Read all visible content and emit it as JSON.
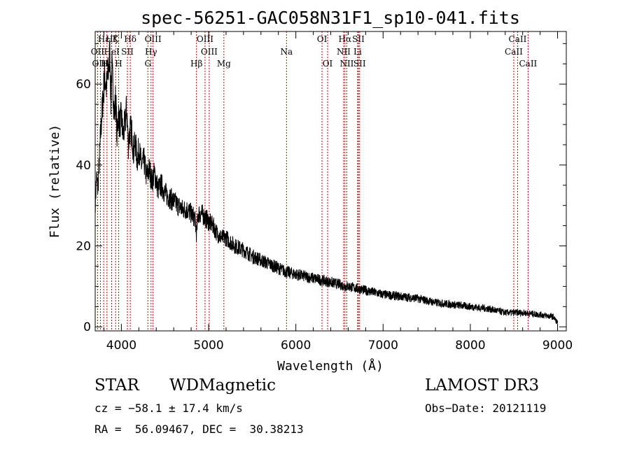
{
  "chart_data": {
    "type": "line",
    "title": "spec-56251-GAC058N31F1_sp10-041.fits",
    "xlabel": "Wavelength (Å)",
    "ylabel": "Flux (relative)",
    "xlim": [
      3700,
      9100
    ],
    "ylim": [
      -1,
      73
    ],
    "xticks": [
      4000,
      5000,
      6000,
      7000,
      8000,
      9000
    ],
    "yticks": [
      0,
      20,
      40,
      60
    ],
    "grid": false,
    "series": [
      {
        "name": "spectrum",
        "x": [
          3700,
          3715,
          3730,
          3745,
          3760,
          3775,
          3790,
          3810,
          3830,
          3850,
          3870,
          3880,
          3890,
          3905,
          3920,
          3935,
          3950,
          3965,
          3980,
          4000,
          4020,
          4040,
          4060,
          4080,
          4100,
          4120,
          4140,
          4160,
          4180,
          4200,
          4230,
          4260,
          4290,
          4320,
          4350,
          4380,
          4420,
          4460,
          4500,
          4550,
          4600,
          4650,
          4700,
          4750,
          4800,
          4840,
          4861,
          4880,
          4920,
          4960,
          5000,
          5050,
          5100,
          5150,
          5200,
          5300,
          5400,
          5500,
          5600,
          5700,
          5800,
          5900,
          6000,
          6100,
          6200,
          6300,
          6400,
          6500,
          6563,
          6600,
          6700,
          6800,
          6900,
          7000,
          7200,
          7400,
          7600,
          7800,
          8000,
          8200,
          8400,
          8600,
          8800,
          8950,
          9000
        ],
        "y": [
          30,
          37,
          34,
          40,
          47,
          52,
          57,
          62,
          59,
          63,
          68,
          55,
          64,
          59,
          52,
          57,
          47,
          53,
          50,
          52,
          47,
          50,
          54,
          45,
          49,
          48,
          43,
          46,
          41,
          44,
          40,
          41,
          37,
          39,
          36,
          38,
          34,
          35,
          33,
          32,
          31,
          30,
          29,
          29,
          28,
          27,
          23,
          28,
          28,
          27,
          26,
          25,
          23,
          22,
          22,
          20,
          19,
          17.5,
          16.5,
          15.5,
          14.5,
          13.5,
          13,
          12.5,
          12,
          11.5,
          11,
          10.5,
          10,
          10,
          9.5,
          9,
          8.5,
          8,
          7.5,
          7,
          6,
          5.5,
          5,
          4.5,
          3.5,
          3.5,
          3,
          2.5,
          1
        ]
      }
    ],
    "lines": [
      {
        "label": "Hε",
        "x": 3797,
        "row": 0
      },
      {
        "label": "OII",
        "x": 3727,
        "row": 1
      },
      {
        "label": "OIII",
        "x": 3760,
        "row": 2
      },
      {
        "label": "K",
        "x": 3934,
        "row": 0
      },
      {
        "label": "H",
        "x": 3969,
        "row": 2
      },
      {
        "label": "Hζ",
        "x": 3889,
        "row": 0
      },
      {
        "label": "HeI",
        "x": 3889,
        "row": 1
      },
      {
        "label": "Hη",
        "x": 3835,
        "row": 2
      },
      {
        "label": "SII",
        "x": 4069,
        "row": 1
      },
      {
        "label": "Hδ",
        "x": 4102,
        "row": 0
      },
      {
        "label": "OIII",
        "x": 4363,
        "row": 0
      },
      {
        "label": "Hγ",
        "x": 4340,
        "row": 1
      },
      {
        "label": "G",
        "x": 4304,
        "row": 2
      },
      {
        "label": "OIII",
        "x": 4959,
        "row": 0
      },
      {
        "label": "OIII",
        "x": 5007,
        "row": 1
      },
      {
        "label": "Hβ",
        "x": 4861,
        "row": 2
      },
      {
        "label": "Mg",
        "x": 5175,
        "row": 2
      },
      {
        "label": "Na",
        "x": 5893,
        "row": 1
      },
      {
        "label": "OI",
        "x": 6300,
        "row": 0
      },
      {
        "label": "OI",
        "x": 6364,
        "row": 2
      },
      {
        "label": "Hα",
        "x": 6563,
        "row": 0
      },
      {
        "label": "NII",
        "x": 6548,
        "row": 1
      },
      {
        "label": "NII",
        "x": 6584,
        "row": 2
      },
      {
        "label": "SII",
        "x": 6717,
        "row": 0
      },
      {
        "label": "Li",
        "x": 6708,
        "row": 1
      },
      {
        "label": "SII",
        "x": 6731,
        "row": 2
      },
      {
        "label": "CaII",
        "x": 8542,
        "row": 0
      },
      {
        "label": "CaII",
        "x": 8498,
        "row": 1
      },
      {
        "label": "CaII",
        "x": 8662,
        "row": 2
      }
    ]
  },
  "info": {
    "class_label": "STAR",
    "subclass": "WDMagnetic",
    "survey": "LAMOST DR3",
    "cz": "cz = −58.1 ± 17.4 km/s",
    "obs_date": "Obs−Date: 20121119",
    "coords": "RA =  56.09467, DEC =  30.38213"
  }
}
